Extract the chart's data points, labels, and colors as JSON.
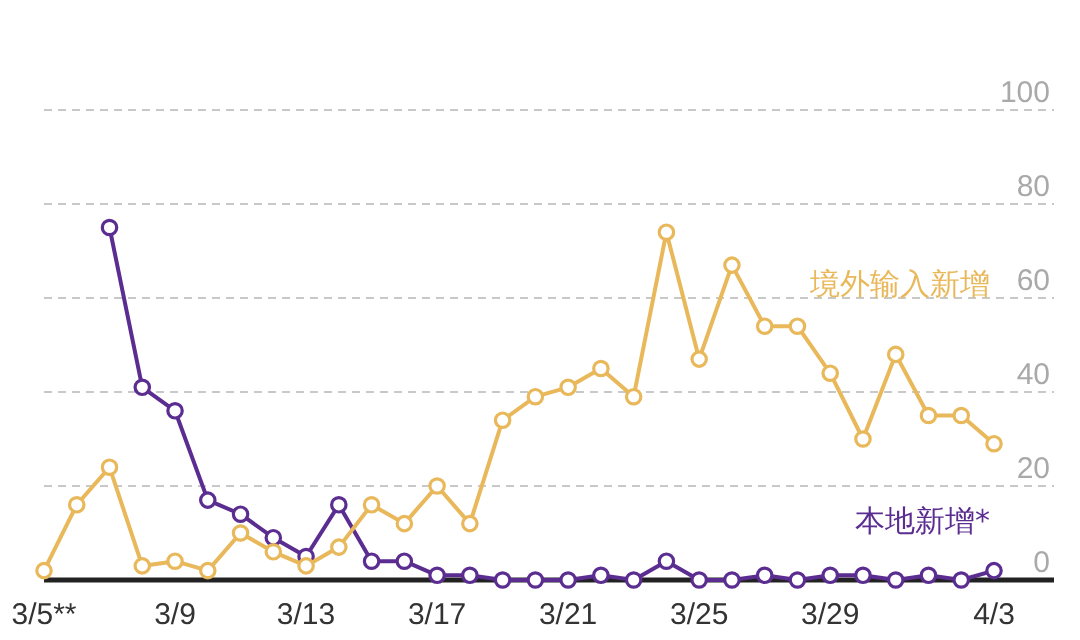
{
  "chart_data": {
    "type": "line",
    "categories": [
      "3/5**",
      null,
      null,
      null,
      "3/9",
      null,
      null,
      null,
      "3/13",
      null,
      null,
      null,
      "3/17",
      null,
      null,
      null,
      "3/21",
      null,
      null,
      null,
      "3/25",
      null,
      null,
      null,
      "3/29",
      null,
      null,
      null,
      null,
      "4/3"
    ],
    "series": [
      {
        "name": "境外输入新增",
        "color": "#e8b85a",
        "values": [
          2,
          16,
          24,
          3,
          4,
          2,
          10,
          6,
          3,
          7,
          16,
          12,
          20,
          12,
          34,
          39,
          41,
          45,
          39,
          74,
          47,
          67,
          54,
          54,
          44,
          30,
          48,
          35,
          35,
          29
        ]
      },
      {
        "name": "本地新增*",
        "color": "#5b2d91",
        "values": [
          null,
          null,
          75,
          41,
          36,
          17,
          14,
          9,
          5,
          16,
          4,
          4,
          1,
          1,
          0,
          0,
          0,
          1,
          0,
          4,
          0,
          0,
          1,
          0,
          1,
          1,
          0,
          1,
          0,
          2
        ]
      }
    ],
    "ylim": [
      0,
      100
    ],
    "yticks": [
      0,
      20,
      40,
      60,
      80,
      100
    ],
    "grid": "y",
    "marker": "circle",
    "line_style": "solid"
  }
}
